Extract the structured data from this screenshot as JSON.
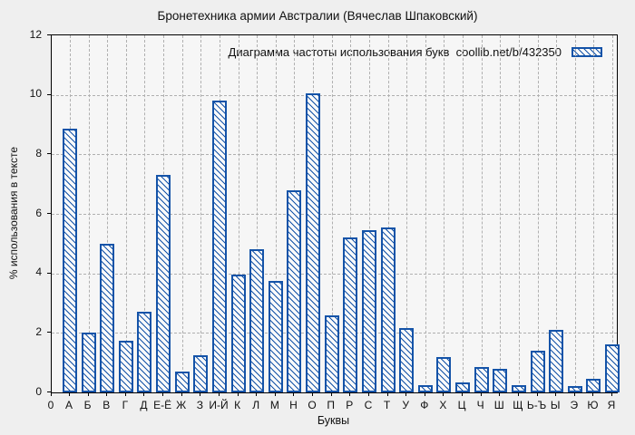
{
  "title": "Бронетехника армии Австралии (Вячеслав Шпаковский)",
  "legend": {
    "label": "Диаграмма частоты использования букв  coollib.net/b/432350",
    "swatch": "blue-hatched-bar-swatch",
    "position": "top-right"
  },
  "colors": {
    "bar": "#1453a8",
    "grid": "#b0b0b0",
    "plot_background": "#f6f6f6",
    "figure_background": "#efefef",
    "axis": "#000000"
  },
  "chart_data": {
    "type": "bar",
    "title": "Бронетехника армии Австралии (Вячеслав Шпаковский)",
    "xlabel": "Буквы",
    "ylabel": "% использования в тексте",
    "origin_label": "0",
    "ylim": [
      0,
      12
    ],
    "yticks": [
      0,
      2,
      4,
      6,
      8,
      10,
      12
    ],
    "grid": true,
    "legend_label": "Диаграмма частоты использования букв  coollib.net/b/432350",
    "categories": [
      "А",
      "Б",
      "В",
      "Г",
      "Д",
      "Е-Ё",
      "Ж",
      "З",
      "И-Й",
      "К",
      "Л",
      "М",
      "Н",
      "О",
      "П",
      "Р",
      "С",
      "Т",
      "У",
      "Ф",
      "Х",
      "Ц",
      "Ч",
      "Ш",
      "Щ",
      "Ь-Ъ",
      "Ы",
      "Э",
      "Ю",
      "Я"
    ],
    "values": [
      8.85,
      2.0,
      5.0,
      1.75,
      2.7,
      7.3,
      0.7,
      1.25,
      9.8,
      3.95,
      4.8,
      3.75,
      6.8,
      10.05,
      2.6,
      5.2,
      5.45,
      5.55,
      2.15,
      0.25,
      1.2,
      0.35,
      0.85,
      0.8,
      0.25,
      1.4,
      2.1,
      0.2,
      0.45,
      1.6
    ]
  }
}
